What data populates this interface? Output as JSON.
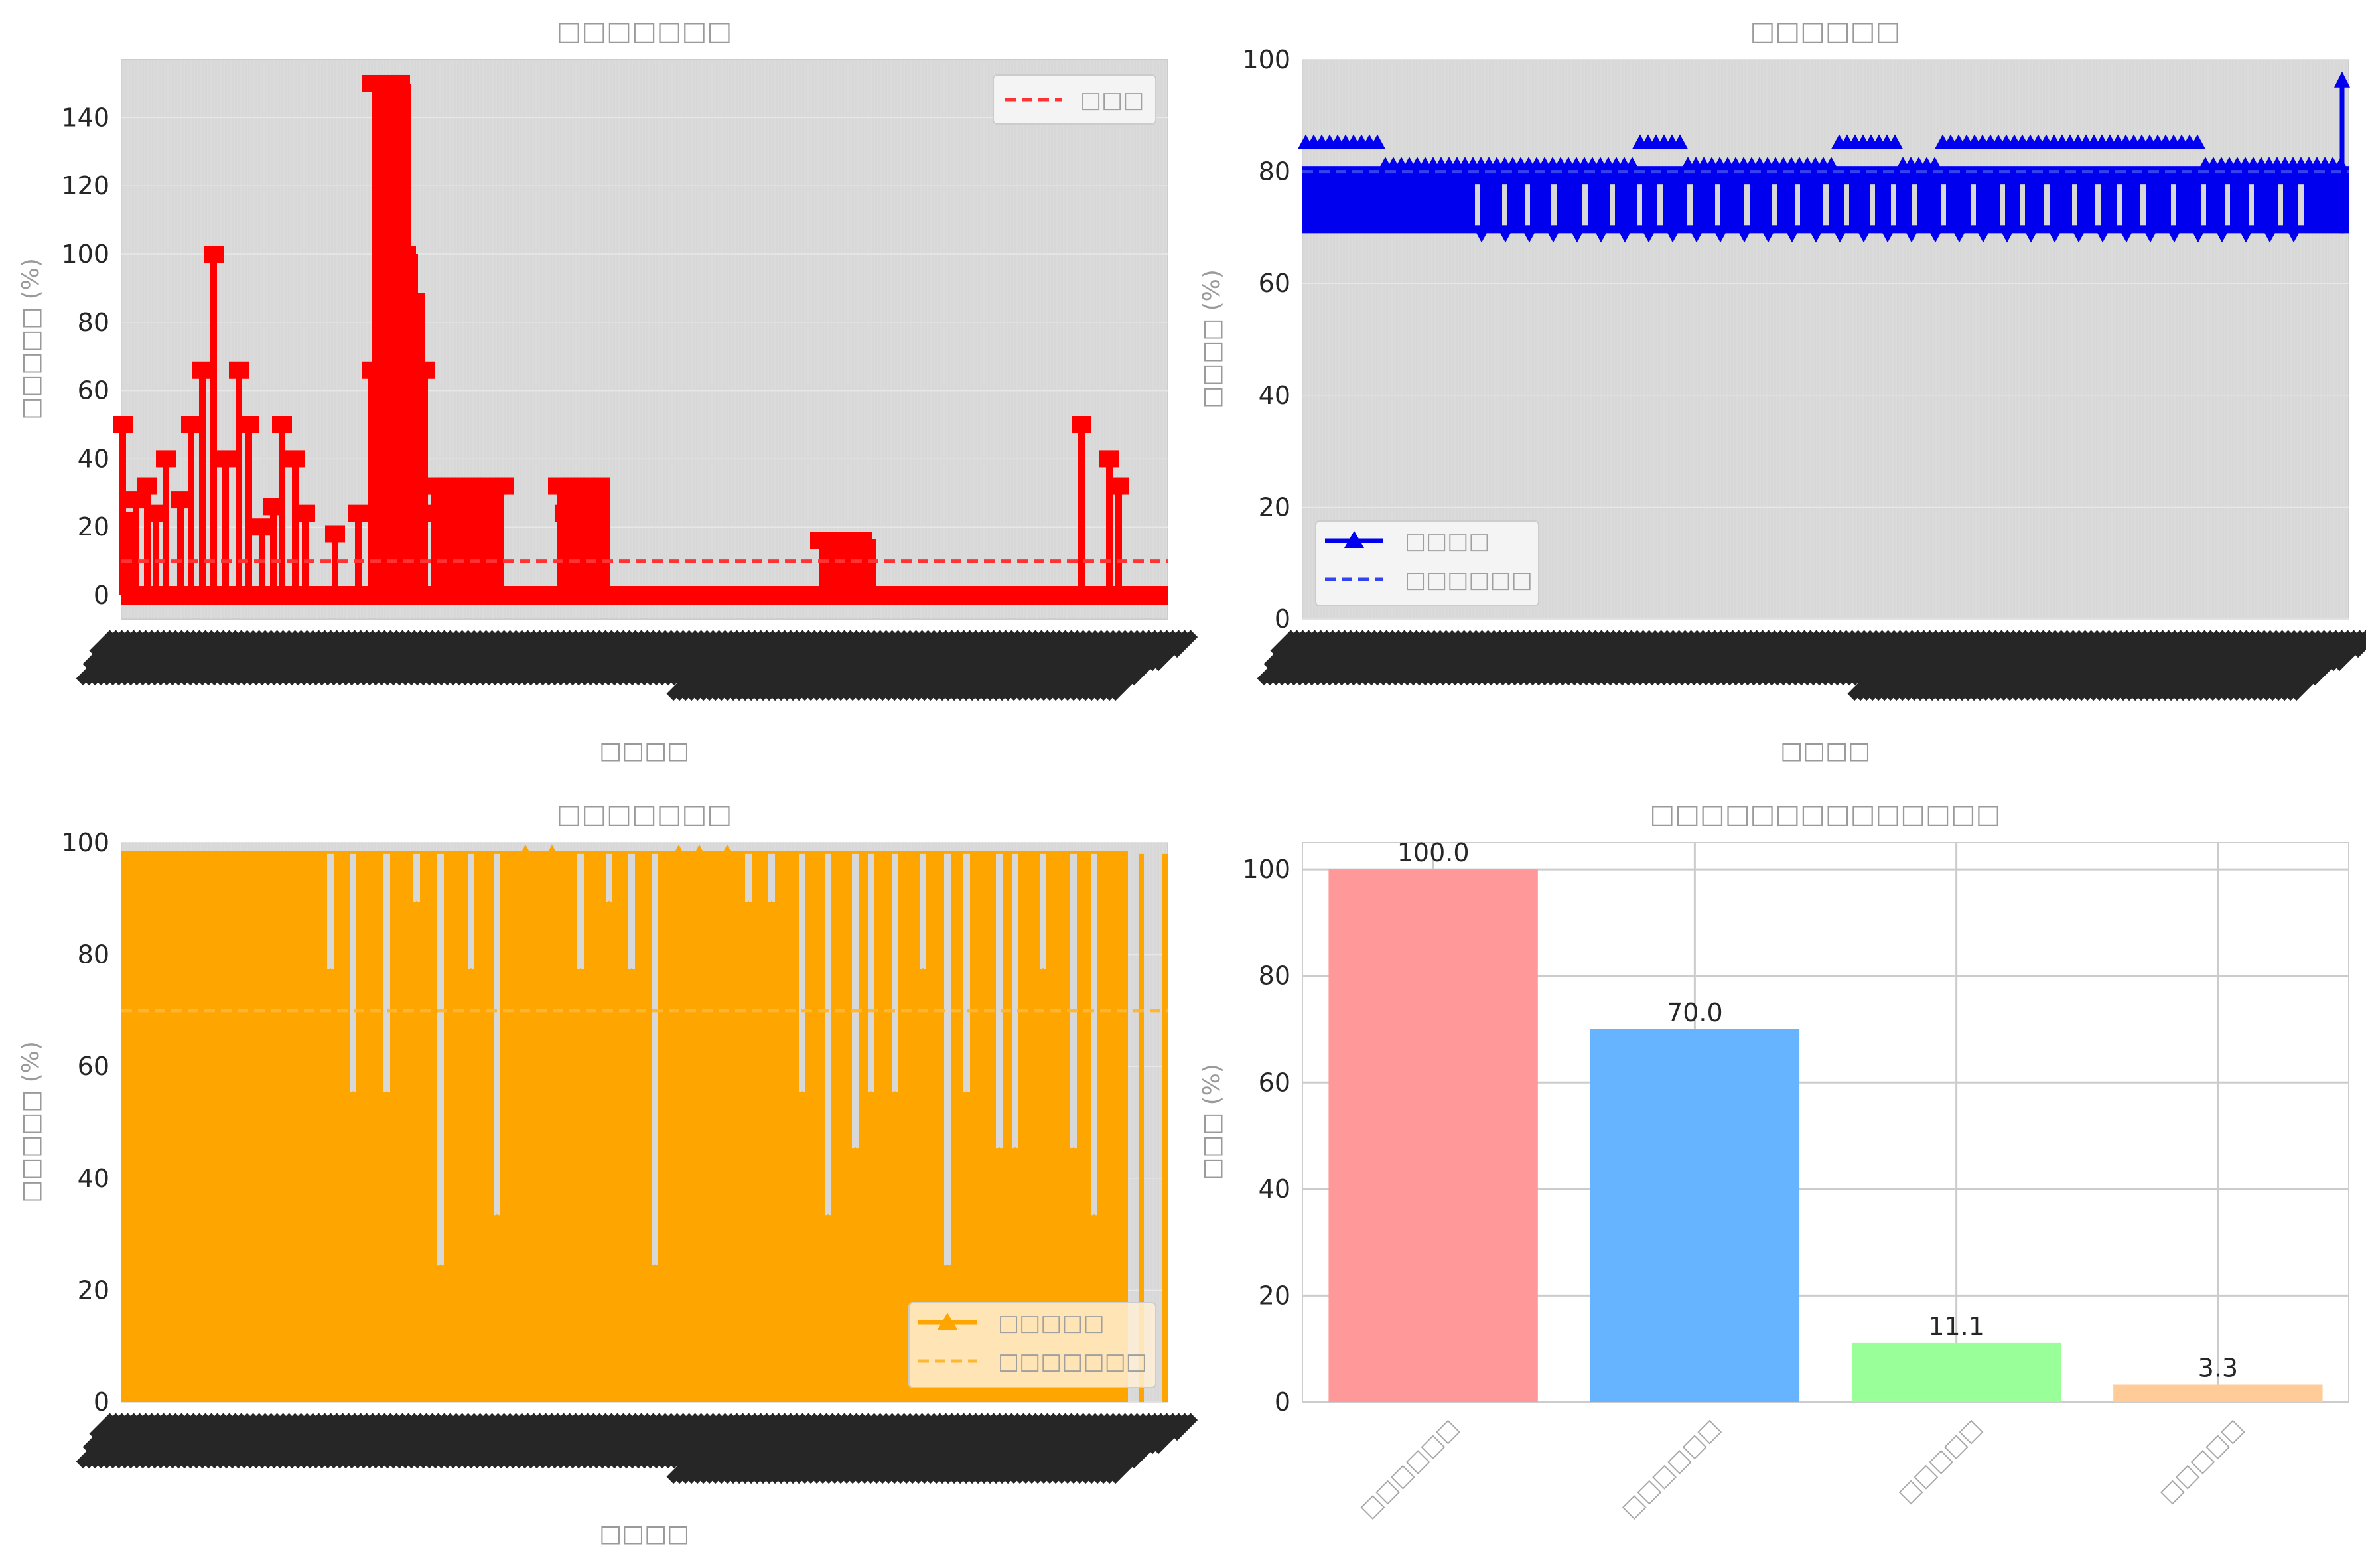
{
  "colors": {
    "panel_bg": "#d8d8d8",
    "grid": "#e8e8e8",
    "spine": "#cccccc",
    "red": "#ff0000",
    "blue": "#0000ee",
    "orange": "#ffa500",
    "bar_colors": [
      "#ff9999",
      "#66b3ff",
      "#99ff99",
      "#ffcc99"
    ]
  },
  "chart_data": [
    {
      "type": "line",
      "title": "□□□□□□□",
      "xlabel": "□□□□",
      "ylabel": "□□□□□ (%)",
      "ylim": [
        -7,
        157
      ],
      "yticks": [
        0,
        20,
        40,
        60,
        80,
        100,
        120,
        140
      ],
      "legend": "top-right",
      "series": [
        {
          "name": "□□□",
          "style": "dashed",
          "y": 10
        },
        {
          "name": "",
          "style": "square-markers",
          "peak_values": [
            50,
            22,
            28,
            32,
            24,
            40,
            28,
            50,
            66,
            100,
            40,
            66,
            50,
            20,
            26,
            50,
            40,
            24,
            18,
            24,
            66,
            100,
            150,
            150,
            100,
            86,
            66,
            24,
            32,
            28,
            32,
            20,
            32,
            24,
            32,
            16,
            16,
            14,
            50,
            40,
            32
          ]
        }
      ]
    },
    {
      "type": "line",
      "title": "□□□□□□",
      "xlabel": "□□□□",
      "ylabel": "□□□□ (%)",
      "ylim": [
        0,
        100
      ],
      "yticks": [
        0,
        20,
        40,
        60,
        80,
        100
      ],
      "legend": "bottom-left",
      "series": [
        {
          "name": "□□□□",
          "style": "triangle-markers",
          "band": [
            69,
            81
          ],
          "spikes": [
            85,
            96
          ]
        },
        {
          "name": "□□□□□□",
          "style": "dashed",
          "y": 80
        }
      ]
    },
    {
      "type": "line",
      "title": "□□□□□□□",
      "xlabel": "□□□□",
      "ylabel": "□□□□□ (%)",
      "ylim": [
        0,
        100
      ],
      "yticks": [
        0,
        20,
        40,
        60,
        80,
        100
      ],
      "legend": "bottom-right",
      "series": [
        {
          "name": "□□□□□",
          "style": "triangle-markers",
          "levels": [
            98,
            88,
            76,
            54,
            44,
            32,
            23
          ]
        },
        {
          "name": "□□□□□□□",
          "style": "dashed",
          "y": 70
        }
      ]
    },
    {
      "type": "bar",
      "title": "□□□□□□□□□□□□□□",
      "xlabel": "",
      "ylabel": "□□□ (%)",
      "ylim": [
        0,
        105
      ],
      "yticks": [
        0,
        20,
        40,
        60,
        80,
        100
      ],
      "categories": [
        "□□□□□□",
        "□□□□□□",
        "□□□□□",
        "□□□□□"
      ],
      "values": [
        100.0,
        70.0,
        11.1,
        3.3
      ],
      "value_labels": [
        "100.0",
        "70.0",
        "11.1",
        "3.3"
      ]
    }
  ]
}
